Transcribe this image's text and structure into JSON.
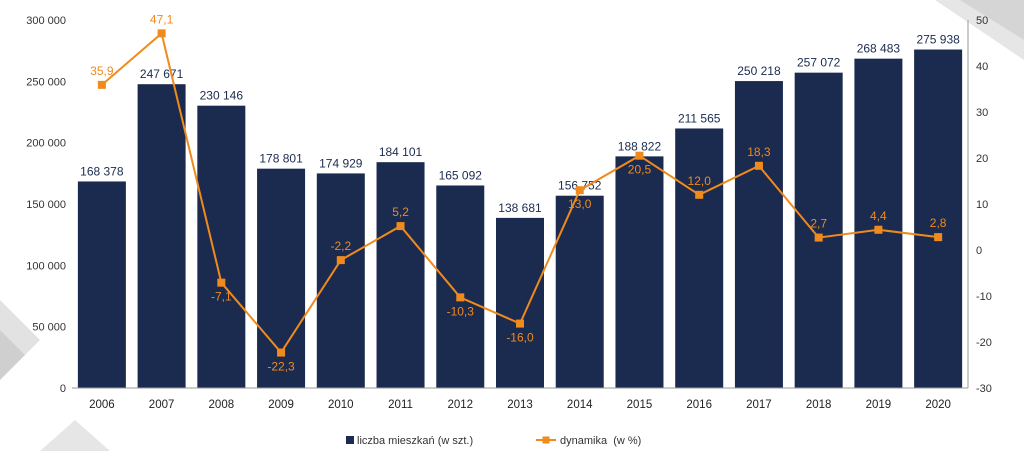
{
  "chart_data": {
    "type": "bar",
    "categories": [
      "2006",
      "2007",
      "2008",
      "2009",
      "2010",
      "2011",
      "2012",
      "2013",
      "2014",
      "2015",
      "2016",
      "2017",
      "2018",
      "2019",
      "2020"
    ],
    "series": [
      {
        "name": "liczba mieszkań (w szt.)",
        "type": "bar",
        "axis": "left",
        "color": "#1b2b4f",
        "values": [
          168378,
          247671,
          230146,
          178801,
          174929,
          184101,
          165092,
          138681,
          156752,
          188822,
          211565,
          250218,
          257072,
          268483,
          275938
        ],
        "labels": [
          "168 378",
          "247 671",
          "230 146",
          "178 801",
          "174 929",
          "184 101",
          "165 092",
          "138 681",
          "156 752",
          "188 822",
          "211 565",
          "250 218",
          "257 072",
          "268 483",
          "275 938"
        ]
      },
      {
        "name": "dynamika  (w %)",
        "type": "line",
        "axis": "right",
        "color": "#f08a1c",
        "values": [
          35.9,
          47.1,
          -7.1,
          -22.3,
          -2.2,
          5.2,
          -10.3,
          -16.0,
          13.0,
          20.5,
          12.0,
          18.3,
          2.7,
          4.4,
          2.8
        ],
        "labels": [
          "35,9",
          "47,1",
          "-7,1",
          "-22,3",
          "-2,2",
          "5,2",
          "-10,3",
          "-16,0",
          "13,0",
          "20,5",
          "12,0",
          "18,3",
          "2,7",
          "4,4",
          "2,8"
        ]
      }
    ],
    "left_axis": {
      "ylim": [
        0,
        300000
      ],
      "ticks": [
        0,
        50000,
        100000,
        150000,
        200000,
        250000,
        300000
      ],
      "tick_labels": [
        "0",
        "50 000",
        "100 000",
        "150 000",
        "200 000",
        "250 000",
        "300 000"
      ]
    },
    "right_axis": {
      "ylim": [
        -30,
        50
      ],
      "ticks": [
        -30,
        -20,
        -10,
        0,
        10,
        20,
        30,
        40,
        50
      ],
      "tick_labels": [
        "-30",
        "-20",
        "-10",
        "0",
        "10",
        "20",
        "30",
        "40",
        "50"
      ]
    },
    "legend_position": "bottom",
    "grid": false
  }
}
